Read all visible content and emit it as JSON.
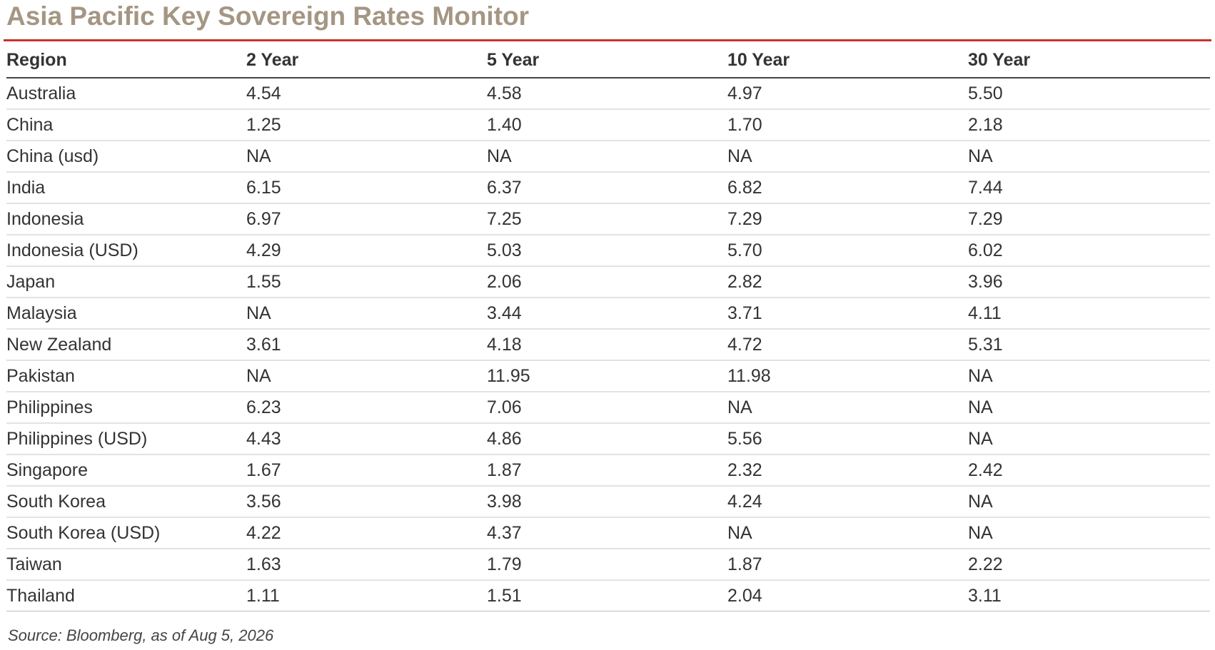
{
  "title": "Asia Pacific Key Sovereign Rates Monitor",
  "colors": {
    "title": "#a49683",
    "rule": "#c8322c",
    "text": "#333333"
  },
  "columns": [
    "Region",
    "2 Year",
    "5 Year",
    "10 Year",
    "30 Year"
  ],
  "rows": [
    [
      "Australia",
      "4.54",
      "4.58",
      "4.97",
      "5.50"
    ],
    [
      "China",
      "1.25",
      "1.40",
      "1.70",
      "2.18"
    ],
    [
      "China (usd)",
      "NA",
      "NA",
      "NA",
      "NA"
    ],
    [
      "India",
      "6.15",
      "6.37",
      "6.82",
      "7.44"
    ],
    [
      "Indonesia",
      "6.97",
      "7.25",
      "7.29",
      "7.29"
    ],
    [
      "Indonesia (USD)",
      "4.29",
      "5.03",
      "5.70",
      "6.02"
    ],
    [
      "Japan",
      "1.55",
      "2.06",
      "2.82",
      "3.96"
    ],
    [
      "Malaysia",
      "NA",
      "3.44",
      "3.71",
      "4.11"
    ],
    [
      "New Zealand",
      "3.61",
      "4.18",
      "4.72",
      "5.31"
    ],
    [
      "Pakistan",
      "NA",
      "11.95",
      "11.98",
      "NA"
    ],
    [
      "Philippines",
      "6.23",
      "7.06",
      "NA",
      "NA"
    ],
    [
      "Philippines (USD)",
      "4.43",
      "4.86",
      "5.56",
      "NA"
    ],
    [
      "Singapore",
      "1.67",
      "1.87",
      "2.32",
      "2.42"
    ],
    [
      "South Korea",
      "3.56",
      "3.98",
      "4.24",
      "NA"
    ],
    [
      "South Korea (USD)",
      "4.22",
      "4.37",
      "NA",
      "NA"
    ],
    [
      "Taiwan",
      "1.63",
      "1.79",
      "1.87",
      "2.22"
    ],
    [
      "Thailand",
      "1.11",
      "1.51",
      "2.04",
      "3.11"
    ]
  ],
  "source": "Source: Bloomberg, as of Aug 5, 2026",
  "chart_data": {
    "type": "table",
    "title": "Asia Pacific Key Sovereign Rates Monitor",
    "columns": [
      "Region",
      "2 Year",
      "5 Year",
      "10 Year",
      "30 Year"
    ],
    "categories": [
      "Australia",
      "China",
      "China (usd)",
      "India",
      "Indonesia",
      "Indonesia (USD)",
      "Japan",
      "Malaysia",
      "New Zealand",
      "Pakistan",
      "Philippines",
      "Philippines (USD)",
      "Singapore",
      "South Korea",
      "South Korea (USD)",
      "Taiwan",
      "Thailand"
    ],
    "series": [
      {
        "name": "2 Year",
        "values": [
          4.54,
          1.25,
          null,
          6.15,
          6.97,
          4.29,
          1.55,
          null,
          3.61,
          null,
          6.23,
          4.43,
          1.67,
          3.56,
          4.22,
          1.63,
          1.11
        ]
      },
      {
        "name": "5 Year",
        "values": [
          4.58,
          1.4,
          null,
          6.37,
          7.25,
          5.03,
          2.06,
          3.44,
          4.18,
          11.95,
          7.06,
          4.86,
          1.87,
          3.98,
          4.37,
          1.79,
          1.51
        ]
      },
      {
        "name": "10 Year",
        "values": [
          4.97,
          1.7,
          null,
          6.82,
          7.29,
          5.7,
          2.82,
          3.71,
          4.72,
          11.98,
          null,
          5.56,
          2.32,
          4.24,
          null,
          1.87,
          2.04
        ]
      },
      {
        "name": "30 Year",
        "values": [
          5.5,
          2.18,
          null,
          7.44,
          7.29,
          6.02,
          3.96,
          4.11,
          5.31,
          null,
          null,
          null,
          2.42,
          null,
          null,
          2.22,
          3.11
        ]
      }
    ]
  }
}
